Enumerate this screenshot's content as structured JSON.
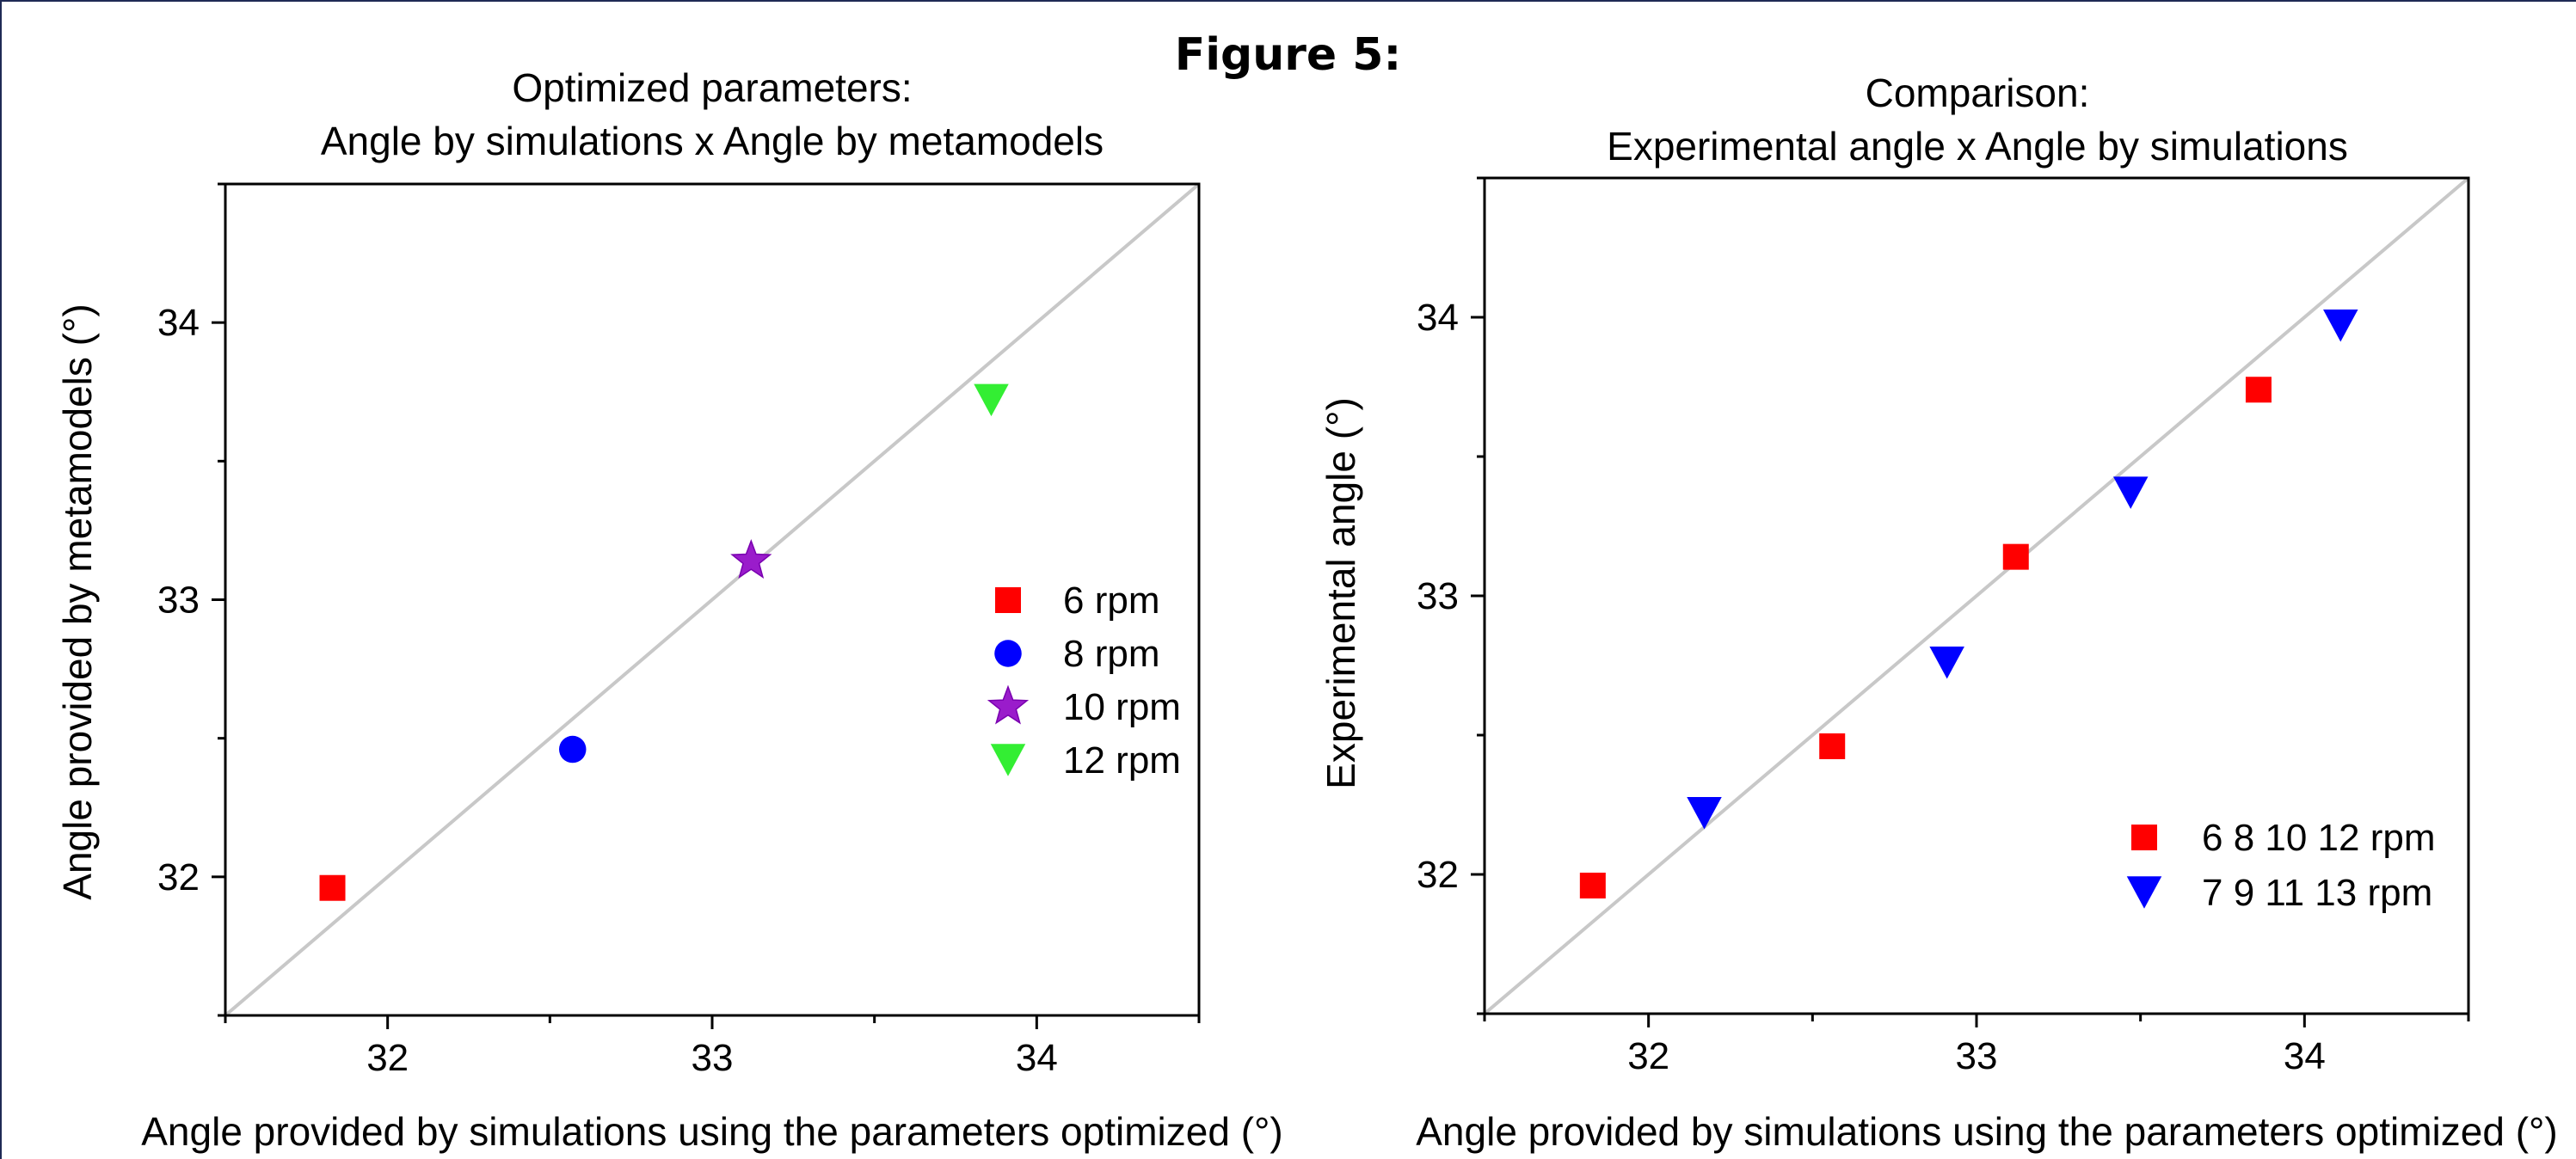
{
  "figure_title": "Figure 5:",
  "chart_data": [
    {
      "type": "scatter",
      "title_line1": "Optimized parameters:",
      "title_line2": "Angle by simulations x Angle by metamodels",
      "xlabel": "Angle provided by simulations using the parameters optimized (°)",
      "ylabel": "Angle provided by metamodels (°)",
      "xlim": [
        31.5,
        34.5
      ],
      "ylim": [
        31.5,
        34.5
      ],
      "xticks": [
        "32",
        "33",
        "34"
      ],
      "yticks": [
        "32",
        "33",
        "34"
      ],
      "reference_line": "y = x",
      "legend_position": "right",
      "series": [
        {
          "name": "6 rpm",
          "marker": "square",
          "color": "#ff0000",
          "points": [
            [
              31.83,
              31.96
            ]
          ]
        },
        {
          "name": "8 rpm",
          "marker": "circle",
          "color": "#0000ff",
          "points": [
            [
              32.57,
              32.46
            ]
          ]
        },
        {
          "name": "10 rpm",
          "marker": "star",
          "color": "#9a1ccb",
          "points": [
            [
              33.12,
              33.14
            ]
          ]
        },
        {
          "name": "12 rpm",
          "marker": "triangle-down",
          "color": "#33ee33",
          "points": [
            [
              33.86,
              33.72
            ]
          ]
        }
      ]
    },
    {
      "type": "scatter",
      "title_line1": "Comparison:",
      "title_line2": "Experimental angle x Angle by simulations",
      "xlabel": "Angle provided by simulations using the parameters optimized (°)",
      "ylabel": "Experimental angle (°)",
      "xlim": [
        31.5,
        34.5
      ],
      "ylim": [
        31.5,
        34.5
      ],
      "xticks": [
        "32",
        "33",
        "34"
      ],
      "yticks": [
        "32",
        "33",
        "34"
      ],
      "reference_line": "y = x",
      "legend_position": "bottom-right",
      "series": [
        {
          "name": "6 8 10 12 rpm",
          "marker": "square",
          "color": "#ff0000",
          "points": [
            [
              31.83,
              31.96
            ],
            [
              32.56,
              32.46
            ],
            [
              33.12,
              33.14
            ],
            [
              33.86,
              33.74
            ]
          ]
        },
        {
          "name": "7 9 11 13 rpm",
          "marker": "triangle-down",
          "color": "#0000ff",
          "points": [
            [
              32.17,
              32.22
            ],
            [
              32.91,
              32.76
            ],
            [
              33.47,
              33.37
            ],
            [
              34.11,
              33.97
            ]
          ]
        }
      ]
    }
  ]
}
